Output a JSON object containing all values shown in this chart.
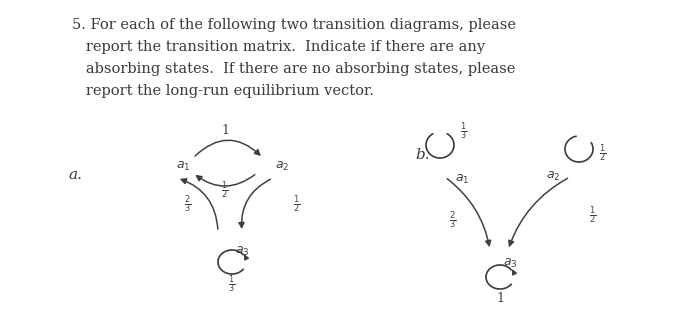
{
  "background_color": "#ffffff",
  "text_color": "#3a3a3a",
  "title_lines": [
    "5. For each of the following two transition diagrams, please",
    "   report the transition matrix.  Indicate if there are any",
    "   absorbing states.  If there are no absorbing states, please",
    "   report the long-run equilibrium vector."
  ],
  "figsize": [
    7.0,
    3.34
  ],
  "dpi": 100
}
